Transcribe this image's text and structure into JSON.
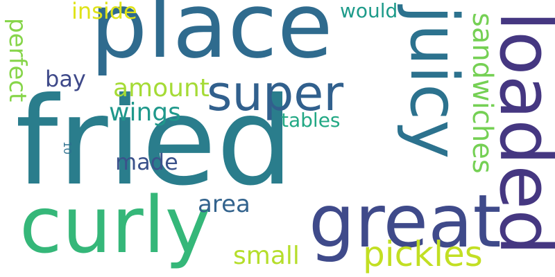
{
  "words": {
    "fried": {
      "text": "fried",
      "color": "#2a7d8c"
    },
    "place": {
      "text": "place",
      "color": "#2f6b8e"
    },
    "curly": {
      "text": "curly",
      "color": "#35b779"
    },
    "great": {
      "text": "great",
      "color": "#3f4a8a"
    },
    "loaded": {
      "text": "loaded",
      "color": "#453781"
    },
    "juicy": {
      "text": "juicy",
      "color": "#2c728e"
    },
    "super": {
      "text": "super",
      "color": "#31608d"
    },
    "sandwiches": {
      "text": "sandwiches",
      "color": "#75d054"
    },
    "pickles": {
      "text": "pickles",
      "color": "#c2df23"
    },
    "amount": {
      "text": "amount",
      "color": "#a5db36"
    },
    "wings": {
      "text": "wings",
      "color": "#1f988b"
    },
    "area": {
      "text": "area",
      "color": "#33638d"
    },
    "small": {
      "text": "small",
      "color": "#b5de2b"
    },
    "made": {
      "text": "made",
      "color": "#3b528b"
    },
    "tables": {
      "text": "tables",
      "color": "#22a884"
    },
    "inside": {
      "text": "inside",
      "color": "#dfe318"
    },
    "would": {
      "text": "would",
      "color": "#1e9b8a"
    },
    "bay": {
      "text": "bay",
      "color": "#3e4989"
    },
    "perfect": {
      "text": "perfect",
      "color": "#86d549"
    },
    "ten": {
      "text": "10",
      "color": "#2d708e"
    }
  }
}
